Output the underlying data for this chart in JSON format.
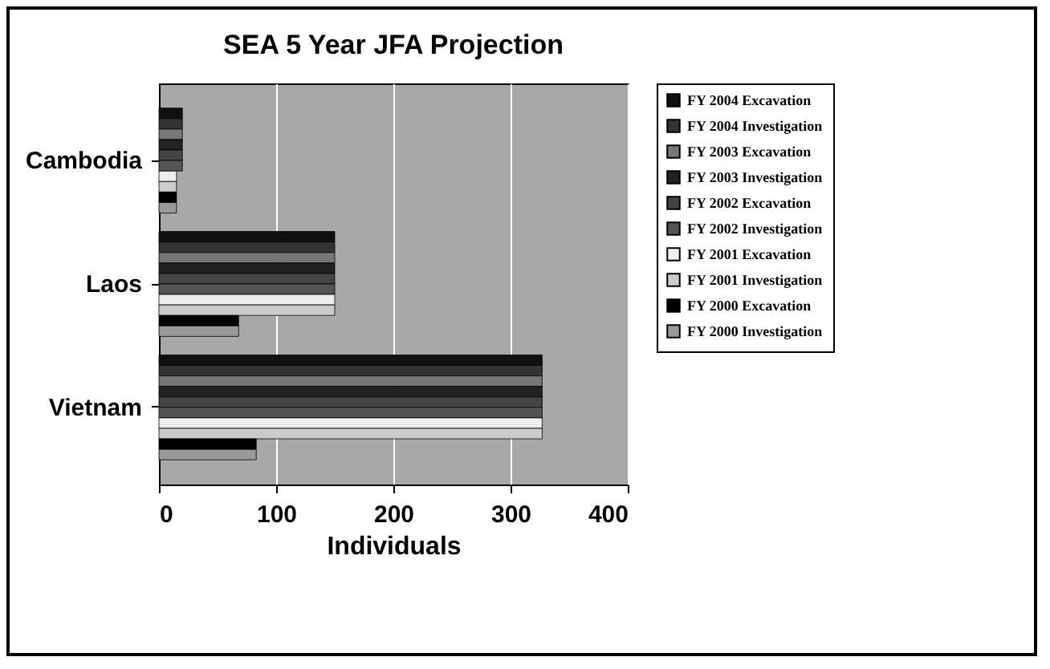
{
  "chart_data": {
    "type": "bar",
    "orientation": "horizontal",
    "title": "SEA 5 Year JFA Projection",
    "xlabel": "Individuals",
    "categories": [
      "Cambodia",
      "Laos",
      "Vietnam"
    ],
    "series": [
      {
        "name": "FY 2004 Excavation",
        "color": "#111111",
        "values": [
          20,
          150,
          327
        ]
      },
      {
        "name": "FY 2004 Investigation",
        "color": "#333333",
        "values": [
          20,
          150,
          327
        ]
      },
      {
        "name": "FY 2003 Excavation",
        "color": "#777777",
        "values": [
          20,
          150,
          327
        ]
      },
      {
        "name": "FY 2003 Investigation",
        "color": "#222222",
        "values": [
          20,
          150,
          327
        ]
      },
      {
        "name": "FY 2002 Excavation",
        "color": "#444444",
        "values": [
          20,
          150,
          327
        ]
      },
      {
        "name": "FY 2002 Investigation",
        "color": "#555555",
        "values": [
          20,
          150,
          327
        ]
      },
      {
        "name": "FY 2001 Excavation",
        "color": "#eeeeee",
        "values": [
          15,
          150,
          327
        ]
      },
      {
        "name": "FY 2001 Investigation",
        "color": "#cccccc",
        "values": [
          15,
          150,
          327
        ]
      },
      {
        "name": "FY 2000 Excavation",
        "color": "#000000",
        "values": [
          15,
          68,
          83
        ]
      },
      {
        "name": "FY 2000 Investigation",
        "color": "#999999",
        "values": [
          15,
          68,
          83
        ]
      }
    ],
    "xlim": [
      0,
      400
    ],
    "xticks": [
      0,
      100,
      200,
      300,
      400
    ],
    "grid": "x",
    "legend": "right"
  }
}
